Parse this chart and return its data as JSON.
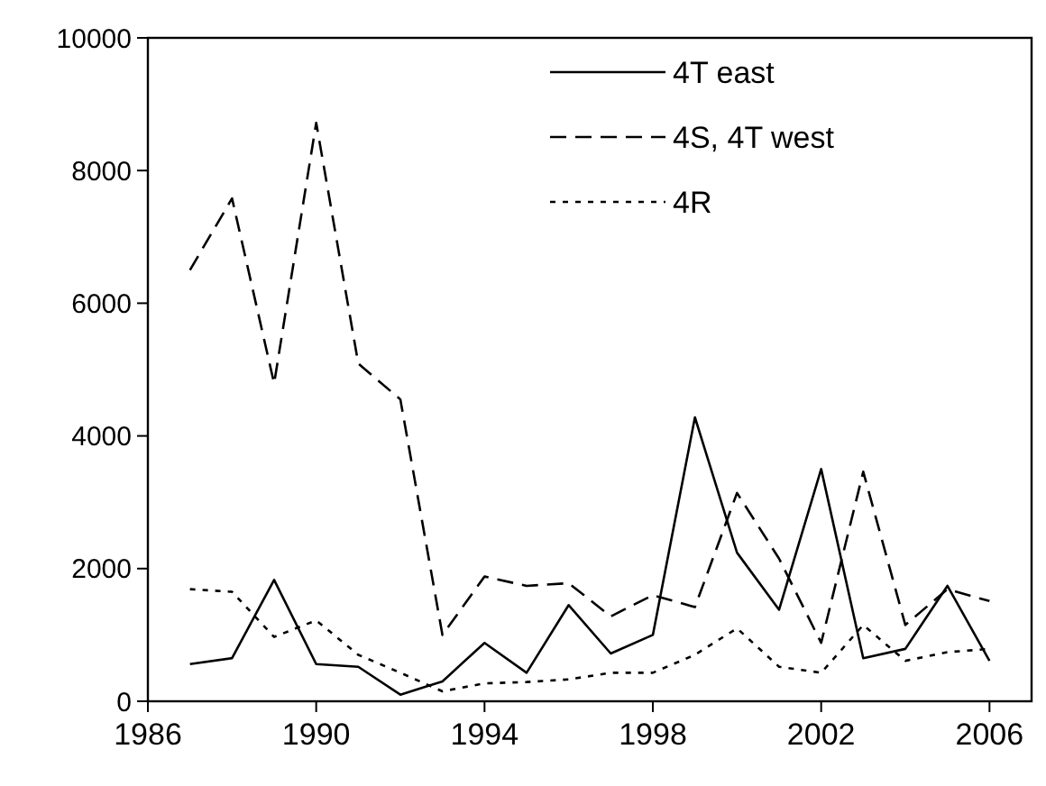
{
  "chart_data": {
    "type": "line",
    "x": [
      1987,
      1988,
      1989,
      1990,
      1991,
      1992,
      1993,
      1994,
      1995,
      1996,
      1997,
      1998,
      1999,
      2000,
      2001,
      2002,
      2003,
      2004,
      2005,
      2006
    ],
    "series": [
      {
        "name": "4T east",
        "color": "#000000",
        "line_style": "solid",
        "values": [
          560,
          650,
          1830,
          560,
          520,
          100,
          300,
          880,
          430,
          1450,
          720,
          1000,
          4280,
          2240,
          1380,
          3500,
          650,
          790,
          1740,
          610
        ]
      },
      {
        "name": "4S, 4T west",
        "color": "#000000",
        "line_style": "dashed",
        "values": [
          6500,
          7580,
          4790,
          8720,
          5090,
          4550,
          1000,
          1880,
          1740,
          1780,
          1280,
          1600,
          1420,
          3140,
          2150,
          880,
          3460,
          1150,
          1690,
          1510
        ]
      },
      {
        "name": "4R",
        "color": "#000000",
        "line_style": "dotted",
        "values": [
          1690,
          1650,
          970,
          1220,
          700,
          430,
          150,
          270,
          290,
          330,
          430,
          430,
          700,
          1100,
          520,
          430,
          1150,
          610,
          740,
          790
        ]
      }
    ],
    "xlim": [
      1986,
      2007
    ],
    "xticks": [
      1986,
      1990,
      1994,
      1998,
      2002,
      2006
    ],
    "ylim": [
      0,
      10000
    ],
    "yticks": [
      0,
      2000,
      4000,
      6000,
      8000,
      10000
    ],
    "grid": false,
    "legend": "top right",
    "marker": "none"
  }
}
